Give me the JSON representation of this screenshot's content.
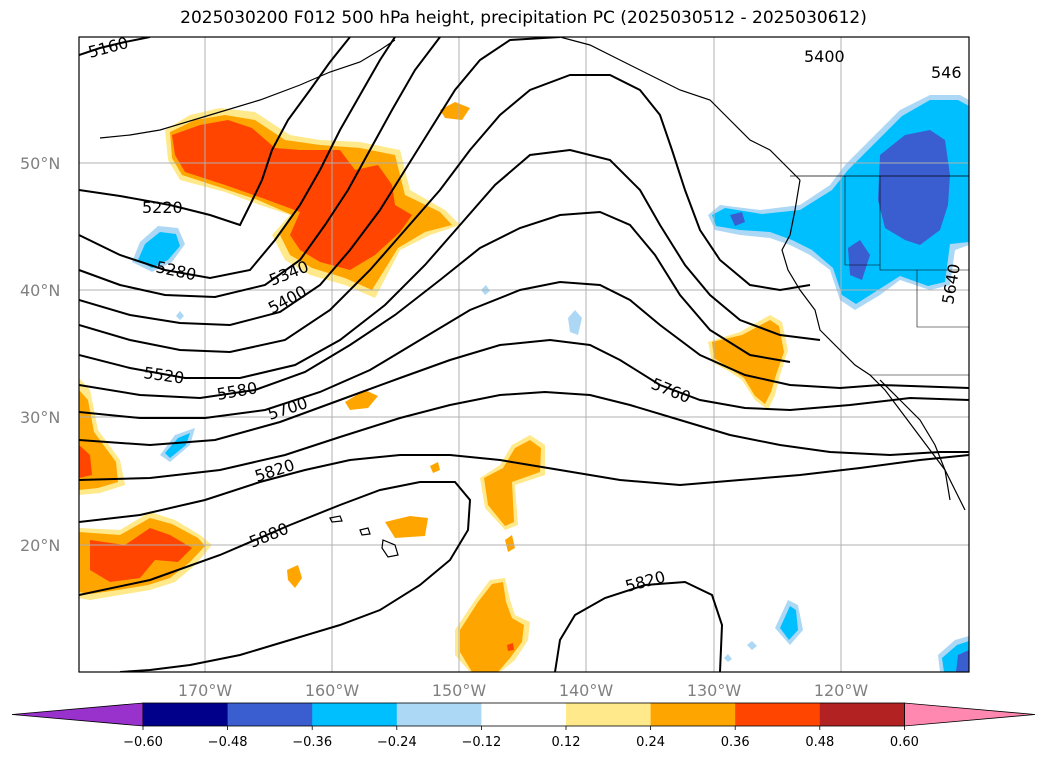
{
  "title": "2025030200 F012 500 hPa height, precipitation PC (2025030512 - 2025030612)",
  "map": {
    "lat_labels": [
      "50°N",
      "40°N",
      "30°N",
      "20°N"
    ],
    "lon_labels": [
      "170°W",
      "160°W",
      "150°W",
      "140°W",
      "130°W",
      "120°W"
    ],
    "contour_labels": [
      "5160",
      "5220",
      "5280",
      "5340",
      "5400",
      "5520",
      "5580",
      "5700",
      "5760",
      "5820",
      "5880",
      "5820",
      "5400",
      "546",
      "5640"
    ]
  },
  "colorbar": {
    "ticks": [
      "−0.60",
      "−0.48",
      "−0.36",
      "−0.24",
      "−0.12",
      "0.12",
      "0.24",
      "0.36",
      "0.48",
      "0.60"
    ],
    "colors": [
      "#9932cc",
      "#00008b",
      "#3a5ecf",
      "#00bfff",
      "#add8f5",
      "#ffffff",
      "#ffe98a",
      "#ffa500",
      "#ff4500",
      "#b22222",
      "#ff88b0"
    ]
  },
  "colors": {
    "positive_low": "#ffe98a",
    "positive_mid": "#ffa500",
    "positive_high": "#ff4500",
    "negative_low": "#add8f5",
    "negative_mid": "#00bfff",
    "negative_high": "#3a5ecf",
    "grid": "#b0b0b0"
  }
}
